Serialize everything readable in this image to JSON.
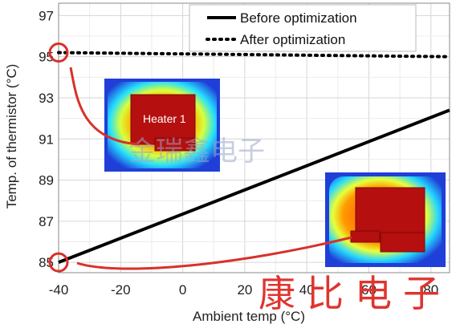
{
  "chart_data": {
    "type": "line",
    "xlabel": "Ambient temp (°C)",
    "ylabel": "Temp. of thermistor (°C)",
    "xlim": [
      -40,
      86
    ],
    "ylim": [
      84.5,
      97.6
    ],
    "x_ticks": [
      -40,
      -20,
      0,
      20,
      40,
      60,
      80
    ],
    "y_ticks": [
      85,
      87,
      89,
      91,
      93,
      95,
      97
    ],
    "grid": true,
    "legend_position": "top-right",
    "series": [
      {
        "name": "Before optimization",
        "style": "solid",
        "color": "#000000",
        "x": [
          -40,
          86
        ],
        "y": [
          85.0,
          92.4
        ]
      },
      {
        "name": "After optimization",
        "style": "dotted",
        "color": "#000000",
        "x": [
          -40,
          86
        ],
        "y": [
          95.2,
          95.0
        ]
      }
    ],
    "annotations": {
      "inset_label": "Heater 1",
      "highlight_color": "#d9302a"
    },
    "watermarks": [
      "康比电子",
      "金瑞鑫电子"
    ]
  }
}
